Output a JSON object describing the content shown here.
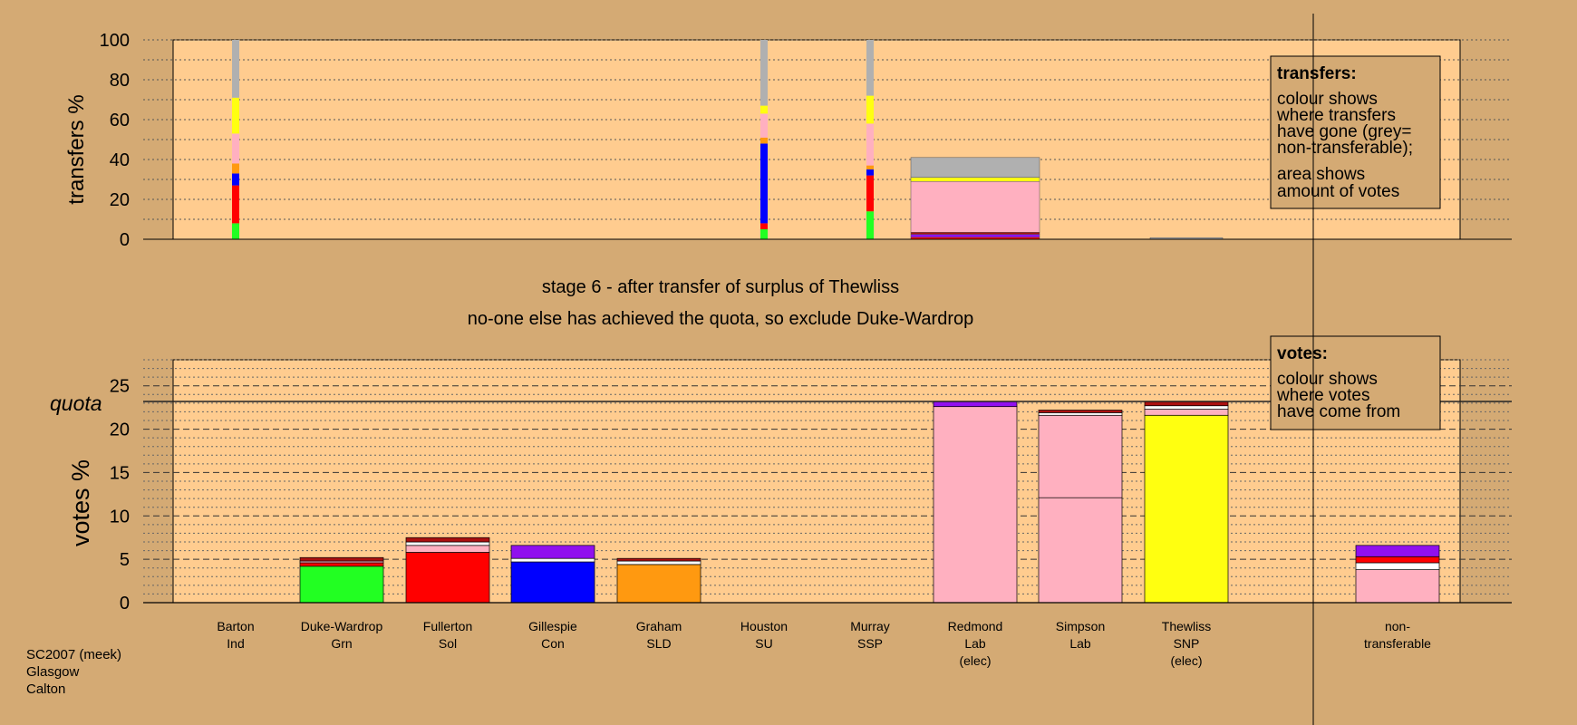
{
  "colors": {
    "background": "#d4aa74",
    "plot_area": "#ffcc8f",
    "green": "#22ff22",
    "red": "#ff0000",
    "blue": "#0000ff",
    "orange": "#ff9910",
    "pink": "#ffb0c0",
    "yellow": "#ffff10",
    "grey": "#b0b0b0",
    "purple": "#9010ee",
    "dark_red": "#aa1010",
    "white": "#ffffff"
  },
  "chart_data": [
    {
      "type": "bar",
      "stacked": true,
      "ylabel": "transfers %",
      "ylim": [
        0,
        100
      ],
      "yticks": [
        "0",
        "20",
        "40",
        "60",
        "80",
        "100"
      ],
      "grid": true,
      "legend": {
        "position": "top-right",
        "title": "transfers:",
        "lines": [
          "colour shows",
          "where transfers",
          "have gone (grey=",
          "non-transferable);",
          "area shows",
          "amount of votes"
        ]
      },
      "bars": [
        {
          "category": "Barton",
          "width": "thin",
          "segments": [
            {
              "color": "green",
              "value": 8
            },
            {
              "color": "red",
              "value": 19
            },
            {
              "color": "blue",
              "value": 6
            },
            {
              "color": "orange",
              "value": 5
            },
            {
              "color": "pink",
              "value": 15
            },
            {
              "color": "yellow",
              "value": 18
            },
            {
              "color": "grey",
              "value": 29
            }
          ]
        },
        {
          "category": "Houston",
          "width": "thin",
          "segments": [
            {
              "color": "green",
              "value": 5
            },
            {
              "color": "red",
              "value": 3
            },
            {
              "color": "blue",
              "value": 40
            },
            {
              "color": "orange",
              "value": 3
            },
            {
              "color": "pink",
              "value": 12
            },
            {
              "color": "yellow",
              "value": 4
            },
            {
              "color": "grey",
              "value": 33
            }
          ]
        },
        {
          "category": "Murray",
          "width": "thin",
          "segments": [
            {
              "color": "green",
              "value": 14
            },
            {
              "color": "red",
              "value": 18
            },
            {
              "color": "blue",
              "value": 3
            },
            {
              "color": "orange",
              "value": 2
            },
            {
              "color": "pink",
              "value": 21
            },
            {
              "color": "yellow",
              "value": 14
            },
            {
              "color": "grey",
              "value": 28
            }
          ]
        },
        {
          "category": "Redmond",
          "width": "wide",
          "segments": [
            {
              "color": "red",
              "value": 1
            },
            {
              "color": "purple",
              "value": 1.5
            },
            {
              "color": "dark_red",
              "value": 1
            },
            {
              "color": "pink",
              "value": 25.5
            },
            {
              "color": "yellow",
              "value": 2
            },
            {
              "color": "grey",
              "value": 10
            }
          ]
        },
        {
          "category": "Thewliss",
          "width": "wide",
          "segments": [
            {
              "color": "grey",
              "value": 0.8
            }
          ]
        }
      ]
    },
    {
      "type": "bar",
      "stacked": true,
      "ylabel": "votes %",
      "ylim": [
        0,
        28
      ],
      "yticks": [
        "0",
        "5",
        "10",
        "15",
        "20",
        "25"
      ],
      "quota": 23.2,
      "quota_label": "quota",
      "grid": true,
      "legend": {
        "position": "top-right",
        "title": "votes:",
        "lines": [
          "colour shows",
          "where votes",
          "have come from"
        ]
      },
      "categories": [
        {
          "name": "Barton",
          "party": "Ind",
          "note": ""
        },
        {
          "name": "Duke-Wardrop",
          "party": "Grn",
          "note": ""
        },
        {
          "name": "Fullerton",
          "party": "Sol",
          "note": ""
        },
        {
          "name": "Gillespie",
          "party": "Con",
          "note": ""
        },
        {
          "name": "Graham",
          "party": "SLD",
          "note": ""
        },
        {
          "name": "Houston",
          "party": "SU",
          "note": ""
        },
        {
          "name": "Murray",
          "party": "SSP",
          "note": ""
        },
        {
          "name": "Redmond",
          "party": "Lab",
          "note": "(elec)"
        },
        {
          "name": "Simpson",
          "party": "Lab",
          "note": ""
        },
        {
          "name": "Thewliss",
          "party": "SNP",
          "note": "(elec)"
        },
        {
          "name": "non-",
          "party": "transferable",
          "note": ""
        }
      ],
      "stacks": [
        [],
        [
          {
            "color": "green",
            "value": 4.2
          },
          {
            "color": "red",
            "value": 0.4
          },
          {
            "color": "pink",
            "value": 0.2
          },
          {
            "color": "dark_red",
            "value": 0.4
          }
        ],
        [
          {
            "color": "red",
            "value": 5.8
          },
          {
            "color": "pink",
            "value": 0.8
          },
          {
            "color": "white",
            "value": 0.4
          },
          {
            "color": "dark_red",
            "value": 0.5
          }
        ],
        [
          {
            "color": "blue",
            "value": 4.7
          },
          {
            "color": "white",
            "value": 0.4
          },
          {
            "color": "purple",
            "value": 1.5
          }
        ],
        [
          {
            "color": "orange",
            "value": 4.4
          },
          {
            "color": "white",
            "value": 0.4
          },
          {
            "color": "dark_red",
            "value": 0.3
          }
        ],
        [],
        [],
        [
          {
            "color": "pink",
            "value": 22.6
          },
          {
            "color": "purple",
            "value": 0.6
          }
        ],
        [
          {
            "color": "pink",
            "value": 12.1
          },
          {
            "color": "pink",
            "value": 9.5
          },
          {
            "color": "white",
            "value": 0.3
          },
          {
            "color": "dark_red",
            "value": 0.3
          }
        ],
        [
          {
            "color": "yellow",
            "value": 21.6
          },
          {
            "color": "pink",
            "value": 0.7
          },
          {
            "color": "white",
            "value": 0.4
          },
          {
            "color": "dark_red",
            "value": 0.5
          }
        ],
        [
          {
            "color": "pink",
            "value": 3.8
          },
          {
            "color": "white",
            "value": 0.8
          },
          {
            "color": "red",
            "value": 0.7
          },
          {
            "color": "purple",
            "value": 1.3
          }
        ]
      ]
    }
  ],
  "stage_title": "stage 6 - after transfer of surplus of Thewliss",
  "stage_subtitle": "no-one else has achieved the quota, so exclude Duke-Wardrop",
  "footer": {
    "lines": [
      "SC2007 (meek)",
      "Glasgow",
      "Calton"
    ]
  }
}
